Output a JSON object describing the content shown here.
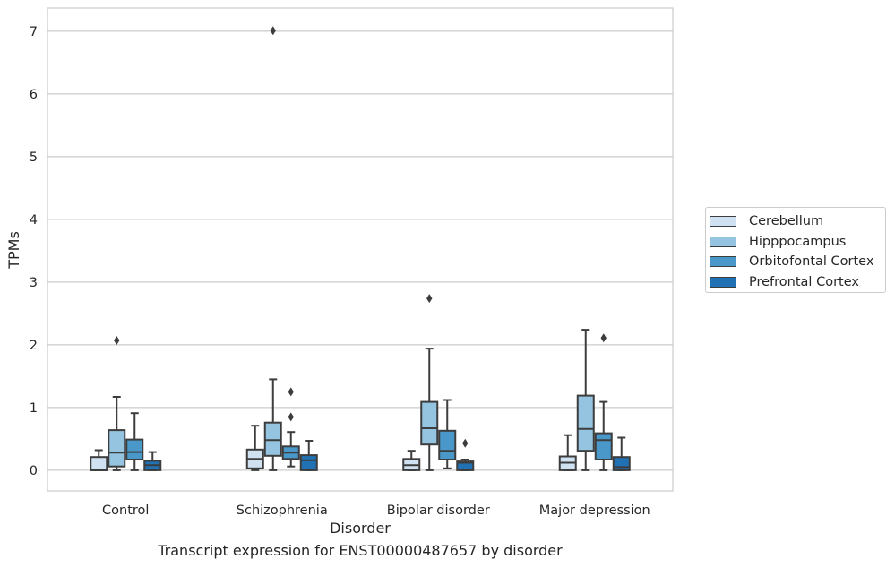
{
  "chart_data": {
    "type": "boxplot",
    "title": "",
    "caption": "Transcript expression for ENST00000487657 by disorder",
    "xlabel": "Disorder",
    "ylabel": "TPMs",
    "ylim": [
      -0.33,
      7.37
    ],
    "yticks": [
      0,
      1,
      2,
      3,
      4,
      5,
      6,
      7
    ],
    "grid": "horizontal",
    "legend_position": "right",
    "categories": [
      "Control",
      "Schizophrenia",
      "Bipolar disorder",
      "Major depression"
    ],
    "series": [
      {
        "name": "Cerebellum",
        "color": "#d0e1f2",
        "boxes": [
          {
            "whislo": 0.0,
            "q1": 0.0,
            "med": 0.0,
            "q3": 0.21,
            "whishi": 0.32,
            "fliers": []
          },
          {
            "whislo": 0.0,
            "q1": 0.03,
            "med": 0.18,
            "q3": 0.33,
            "whishi": 0.71,
            "fliers": []
          },
          {
            "whislo": 0.0,
            "q1": 0.0,
            "med": 0.08,
            "q3": 0.18,
            "whishi": 0.31,
            "fliers": []
          },
          {
            "whislo": 0.0,
            "q1": 0.0,
            "med": 0.12,
            "q3": 0.22,
            "whishi": 0.56,
            "fliers": []
          }
        ]
      },
      {
        "name": "Hipppocampus",
        "color": "#94c4df",
        "boxes": [
          {
            "whislo": 0.0,
            "q1": 0.06,
            "med": 0.28,
            "q3": 0.64,
            "whishi": 1.17,
            "fliers": [
              2.07
            ]
          },
          {
            "whislo": 0.0,
            "q1": 0.23,
            "med": 0.48,
            "q3": 0.76,
            "whishi": 1.45,
            "fliers": [
              7.01
            ]
          },
          {
            "whislo": 0.0,
            "q1": 0.41,
            "med": 0.67,
            "q3": 1.09,
            "whishi": 1.94,
            "fliers": [
              2.74
            ]
          },
          {
            "whislo": 0.0,
            "q1": 0.31,
            "med": 0.66,
            "q3": 1.19,
            "whishi": 2.24,
            "fliers": []
          }
        ]
      },
      {
        "name": "Orbitofontal Cortex",
        "color": "#4a98c9",
        "boxes": [
          {
            "whislo": 0.0,
            "q1": 0.17,
            "med": 0.29,
            "q3": 0.49,
            "whishi": 0.91,
            "fliers": []
          },
          {
            "whislo": 0.06,
            "q1": 0.18,
            "med": 0.28,
            "q3": 0.38,
            "whishi": 0.61,
            "fliers": [
              0.85,
              1.25
            ]
          },
          {
            "whislo": 0.03,
            "q1": 0.17,
            "med": 0.31,
            "q3": 0.63,
            "whishi": 1.12,
            "fliers": []
          },
          {
            "whislo": 0.0,
            "q1": 0.17,
            "med": 0.48,
            "q3": 0.59,
            "whishi": 1.09,
            "fliers": [
              2.11
            ]
          }
        ]
      },
      {
        "name": "Prefrontal Cortex",
        "color": "#2171b5",
        "boxes": [
          {
            "whislo": 0.0,
            "q1": 0.0,
            "med": 0.08,
            "q3": 0.15,
            "whishi": 0.29,
            "fliers": []
          },
          {
            "whislo": 0.0,
            "q1": 0.0,
            "med": 0.16,
            "q3": 0.24,
            "whishi": 0.47,
            "fliers": []
          },
          {
            "whislo": 0.0,
            "q1": 0.0,
            "med": 0.12,
            "q3": 0.14,
            "whishi": 0.17,
            "fliers": [
              0.43
            ]
          },
          {
            "whislo": 0.0,
            "q1": 0.0,
            "med": 0.05,
            "q3": 0.21,
            "whishi": 0.52,
            "fliers": []
          }
        ]
      }
    ]
  }
}
